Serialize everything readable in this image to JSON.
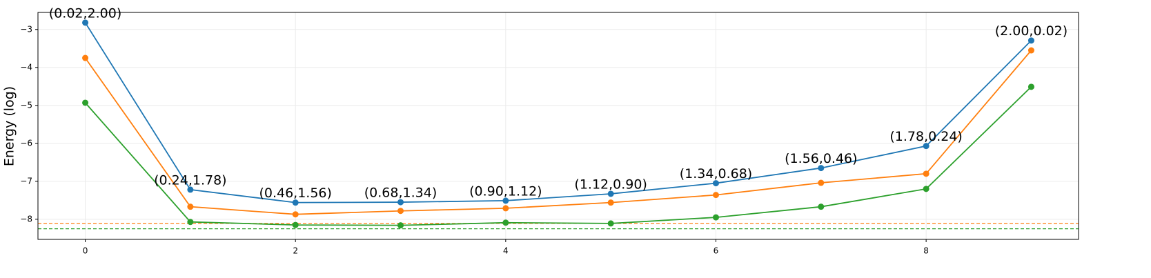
{
  "chart_data": {
    "type": "line",
    "ylabel": "Energy (log)",
    "x": [
      0,
      1,
      2,
      3,
      4,
      5,
      6,
      7,
      8,
      9
    ],
    "series": [
      {
        "color": "#1f77b4",
        "values": [
          -2.82,
          -7.22,
          -7.56,
          -7.55,
          -7.51,
          -7.33,
          -7.05,
          -6.65,
          -6.07,
          -3.29
        ]
      },
      {
        "color": "#ff7f0e",
        "values": [
          -3.75,
          -7.67,
          -7.87,
          -7.78,
          -7.71,
          -7.56,
          -7.36,
          -7.04,
          -6.8,
          -3.55
        ]
      },
      {
        "color": "#2ca02c",
        "values": [
          -4.93,
          -8.07,
          -8.15,
          -8.16,
          -8.09,
          -8.11,
          -7.95,
          -7.67,
          -7.2,
          -4.51
        ]
      }
    ],
    "annotations": [
      "(0.02,2.00)",
      "(0.24,1.78)",
      "(0.46,1.56)",
      "(0.68,1.34)",
      "(0.90,1.12)",
      "(1.12,0.90)",
      "(1.34,0.68)",
      "(1.56,0.46)",
      "(1.78,0.24)",
      "(2.00,0.02)"
    ],
    "hlines": [
      {
        "value": -8.11,
        "color": "#ff7f0e"
      },
      {
        "value": -8.25,
        "color": "#2ca02c"
      }
    ],
    "xlim": [
      -0.45,
      9.45
    ],
    "xticks": [
      0,
      2,
      4,
      6,
      8
    ],
    "ylim": [
      -8.53,
      -2.55
    ],
    "yticks": [
      {
        "value": -3,
        "label": "−3"
      },
      {
        "value": -4,
        "label": "−4"
      },
      {
        "value": -5,
        "label": "−5"
      },
      {
        "value": -6,
        "label": "−6"
      },
      {
        "value": -7,
        "label": "−7"
      },
      {
        "value": -8,
        "label": "−8"
      }
    ],
    "grid": true
  }
}
